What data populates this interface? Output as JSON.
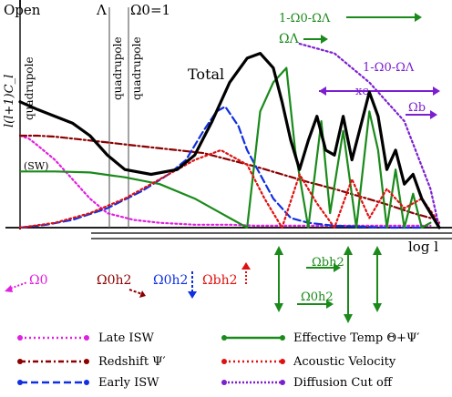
{
  "chart_data": {
    "type": "line",
    "title": "",
    "xlabel": "log l",
    "ylabel": "l(l+1)C_l",
    "xscale": "log",
    "grid": false,
    "legend_position": "bottom",
    "top_labels": [
      "Open",
      "Λ",
      "Ω0=1"
    ],
    "vertical_line_labels": [
      "quadrupole",
      "quadrupole",
      "quadrupole"
    ],
    "annotations": {
      "total": "Total",
      "sw": "(SW)",
      "om_om_lambda": "1-Ω0-ΩΛ",
      "omega_lambda": "ΩΛ",
      "om_om_lambda_2": "1-Ω0-ΩΛ",
      "xc": "xc",
      "omega_b": "Ωb",
      "omega0": "Ω0",
      "omega0h2_a": "Ω0h2",
      "omega0h2_b": "Ω0h2",
      "omegabh2": "Ωbh2",
      "omegabh2_arrows": "Ωbh2",
      "omega0h2_arrows": "Ω0h2"
    },
    "series": [
      {
        "name": "Late ISW",
        "color": "#e020e0",
        "style": "dotted",
        "x": [
          0,
          10,
          20,
          40,
          60,
          80,
          100,
          130,
          160,
          200,
          240,
          270,
          300,
          330,
          360,
          400,
          440,
          470
        ],
        "y": [
          95,
          92,
          85,
          70,
          50,
          30,
          15,
          8,
          5,
          3,
          3,
          2,
          2,
          2,
          2,
          2,
          2,
          2
        ]
      },
      {
        "name": "Redshift Ψ",
        "color": "#8b0000",
        "style": "dashdot",
        "x": [
          0,
          20,
          40,
          60,
          80,
          100,
          120,
          150,
          180,
          210,
          240,
          270,
          300,
          330,
          360,
          390,
          420,
          450,
          470
        ],
        "y": [
          95,
          95,
          94,
          92,
          90,
          88,
          86,
          83,
          80,
          77,
          70,
          63,
          55,
          47,
          40,
          32,
          24,
          15,
          10
        ]
      },
      {
        "name": "Early ISW",
        "color": "#1030e0",
        "style": "dashed",
        "x": [
          0,
          30,
          60,
          100,
          140,
          170,
          190,
          210,
          225,
          235,
          250,
          260,
          275,
          290,
          310,
          330,
          360,
          390,
          420,
          460
        ],
        "y": [
          0,
          3,
          8,
          20,
          38,
          55,
          70,
          100,
          120,
          125,
          105,
          80,
          55,
          30,
          10,
          5,
          2,
          1,
          0,
          0
        ]
      },
      {
        "name": "Effective Temp Θ+Ψ",
        "color": "#1a8a1a",
        "style": "solid",
        "x": [
          0,
          40,
          80,
          120,
          160,
          200,
          230,
          260,
          275,
          290,
          305,
          315,
          330,
          345,
          355,
          370,
          385,
          400,
          410,
          420,
          430,
          440,
          450,
          460,
          470
        ],
        "y": [
          58,
          58,
          57,
          52,
          45,
          30,
          15,
          0,
          120,
          150,
          165,
          80,
          0,
          110,
          15,
          100,
          0,
          120,
          80,
          0,
          60,
          0,
          35,
          0,
          5
        ]
      },
      {
        "name": "Acoustic Velocity",
        "color": "#e01010",
        "style": "dotted",
        "x": [
          0,
          40,
          80,
          120,
          160,
          200,
          230,
          260,
          280,
          300,
          320,
          340,
          360,
          380,
          400,
          420,
          440,
          460,
          480
        ],
        "y": [
          0,
          5,
          15,
          30,
          50,
          70,
          80,
          65,
          30,
          0,
          55,
          25,
          0,
          50,
          10,
          40,
          20,
          30,
          5
        ]
      },
      {
        "name": "Diffusion Cut off",
        "color": "#7b1fd0",
        "style": "dotted",
        "x": [
          320,
          360,
          400,
          440,
          470,
          480
        ],
        "y": [
          190,
          180,
          150,
          110,
          40,
          0
        ]
      },
      {
        "name": "Total",
        "color": "#000000",
        "style": "solid",
        "x": [
          0,
          20,
          40,
          60,
          80,
          100,
          120,
          150,
          180,
          200,
          220,
          240,
          260,
          275,
          290,
          300,
          310,
          320,
          330,
          340,
          350,
          360,
          370,
          380,
          390,
          400,
          410,
          420,
          430,
          440,
          450,
          460,
          470,
          480
        ],
        "y": [
          130,
          122,
          115,
          108,
          95,
          75,
          60,
          55,
          60,
          75,
          110,
          150,
          175,
          180,
          165,
          130,
          90,
          60,
          90,
          115,
          80,
          75,
          115,
          70,
          105,
          140,
          115,
          60,
          80,
          45,
          55,
          30,
          15,
          0
        ]
      }
    ]
  },
  "legend": {
    "late_isw": "Late ISW",
    "redshift": "Redshift Ψ′",
    "early_isw": "Early ISW",
    "effective_temp": "Effective Temp Θ+Ψ′",
    "acoustic_velocity": "Acoustic Velocity",
    "diffusion_cutoff": "Diffusion Cut off"
  },
  "colors": {
    "late_isw": "#e020e0",
    "redshift": "#8b0000",
    "early_isw": "#1030e0",
    "effective_temp": "#1a8a1a",
    "acoustic_velocity": "#e01010",
    "diffusion_cutoff": "#7b1fd0",
    "total": "#000000"
  }
}
